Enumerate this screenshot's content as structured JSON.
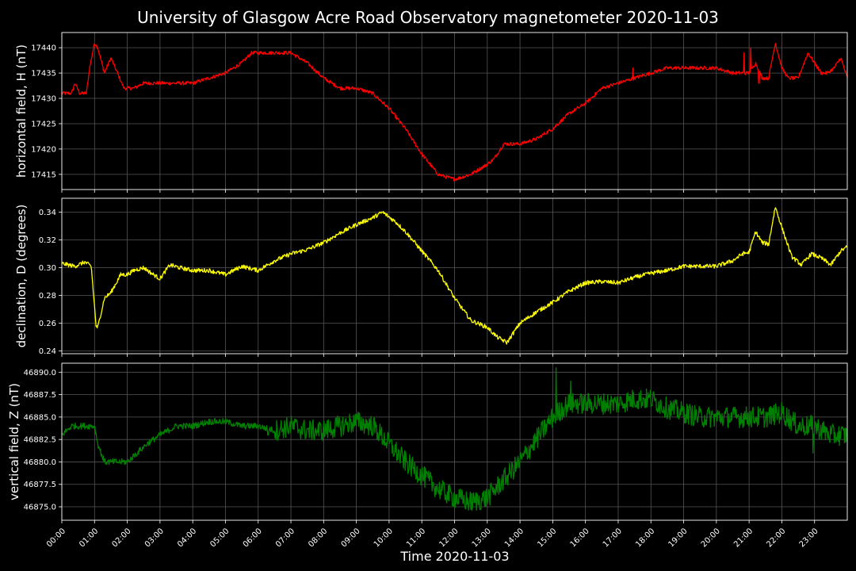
{
  "chart_data": {
    "type": "line",
    "title": "University of Glasgow Acre Road Observatory magnetometer 2020-11-03",
    "xlabel": "Time 2020-11-03",
    "x_ticks": [
      "00:00",
      "01:00",
      "02:00",
      "03:00",
      "04:00",
      "05:00",
      "06:00",
      "07:00",
      "08:00",
      "09:00",
      "10:00",
      "11:00",
      "12:00",
      "13:00",
      "14:00",
      "15:00",
      "16:00",
      "17:00",
      "18:00",
      "19:00",
      "20:00",
      "21:00",
      "22:00",
      "23:00"
    ],
    "x_range_hours": [
      0,
      24
    ],
    "grid": true,
    "background": "#000000",
    "grid_color": "#555555",
    "panels": [
      {
        "ylabel": "horizontal field, H (nT)",
        "color": "#ff0000",
        "ylim": [
          17412,
          17443
        ],
        "yticks": [
          17415,
          17420,
          17425,
          17430,
          17435,
          17440
        ],
        "noise": 0.35,
        "x": [
          0,
          0.3,
          0.4,
          0.55,
          0.75,
          0.85,
          1.0,
          1.1,
          1.3,
          1.5,
          1.7,
          1.9,
          2.2,
          2.5,
          2.8,
          3.0,
          3.5,
          4.0,
          4.5,
          5.0,
          5.5,
          5.8,
          6.0,
          6.2,
          6.5,
          7.0,
          7.5,
          8.0,
          8.5,
          9.0,
          9.5,
          10.0,
          10.5,
          11.0,
          11.5,
          12.0,
          12.5,
          13.0,
          13.2,
          13.5,
          14.0,
          14.5,
          15.0,
          15.5,
          16.0,
          16.5,
          17.0,
          17.5,
          18.0,
          18.5,
          19.0,
          19.5,
          20.0,
          20.5,
          20.8,
          21.0,
          21.2,
          21.4,
          21.6,
          21.8,
          22.0,
          22.2,
          22.5,
          22.8,
          23.0,
          23.2,
          23.4,
          23.6,
          23.8,
          24.0
        ],
        "y": [
          17431,
          17431,
          17433,
          17431,
          17431,
          17436,
          17441,
          17440,
          17435,
          17438,
          17435,
          17432,
          17432,
          17433,
          17433,
          17433,
          17433,
          17433,
          17434,
          17435,
          17437,
          17439,
          17439,
          17439,
          17439,
          17439,
          17437,
          17434,
          17432,
          17432,
          17431,
          17428,
          17424,
          17419,
          17415,
          17414,
          17415,
          17417,
          17418,
          17421,
          17421,
          17422,
          17424,
          17427,
          17429,
          17432,
          17433,
          17434,
          17435,
          17436,
          17436,
          17436,
          17436,
          17435,
          17435,
          17435,
          17437,
          17434,
          17434,
          17441,
          17436,
          17434,
          17434,
          17439,
          17437,
          17435,
          17435,
          17436,
          17438,
          17434
        ],
        "spikes": [
          [
            17.45,
            17436
          ],
          [
            20.85,
            17439
          ],
          [
            21.05,
            17440
          ],
          [
            21.3,
            17433
          ]
        ]
      },
      {
        "ylabel": "declination, D (degrees)",
        "color": "#ffff00",
        "ylim": [
          0.238,
          0.35
        ],
        "yticks": [
          0.24,
          0.26,
          0.28,
          0.3,
          0.32,
          0.34
        ],
        "noise": 0.0015,
        "x": [
          0,
          0.4,
          0.7,
          0.9,
          1.05,
          1.1,
          1.3,
          1.5,
          1.8,
          2.0,
          2.2,
          2.5,
          2.8,
          3.0,
          3.3,
          3.6,
          4.0,
          4.5,
          5.0,
          5.5,
          6.0,
          6.5,
          7.0,
          7.5,
          8.0,
          8.5,
          9.0,
          9.5,
          9.8,
          10.2,
          10.5,
          11.0,
          11.5,
          12.0,
          12.5,
          13.0,
          13.3,
          13.6,
          14.0,
          14.5,
          15.0,
          15.5,
          16.0,
          16.5,
          17.0,
          17.5,
          18.0,
          18.5,
          19.0,
          19.5,
          20.0,
          20.5,
          20.8,
          21.0,
          21.2,
          21.4,
          21.6,
          21.8,
          22.0,
          22.3,
          22.6,
          22.9,
          23.2,
          23.5,
          23.8,
          24.0
        ],
        "y": [
          0.303,
          0.301,
          0.304,
          0.301,
          0.257,
          0.257,
          0.278,
          0.282,
          0.295,
          0.295,
          0.298,
          0.3,
          0.295,
          0.292,
          0.302,
          0.3,
          0.298,
          0.298,
          0.295,
          0.301,
          0.298,
          0.305,
          0.31,
          0.313,
          0.318,
          0.325,
          0.331,
          0.336,
          0.34,
          0.333,
          0.326,
          0.312,
          0.298,
          0.278,
          0.262,
          0.257,
          0.25,
          0.246,
          0.26,
          0.268,
          0.275,
          0.283,
          0.289,
          0.29,
          0.289,
          0.293,
          0.296,
          0.298,
          0.301,
          0.301,
          0.301,
          0.305,
          0.31,
          0.311,
          0.326,
          0.318,
          0.317,
          0.344,
          0.329,
          0.308,
          0.302,
          0.31,
          0.307,
          0.302,
          0.312,
          0.315
        ],
        "spikes": []
      },
      {
        "ylabel": "vertical field, Z (nT)",
        "color": "#008000",
        "ylim": [
          46873.5,
          46891
        ],
        "yticks": [
          46875.0,
          46877.5,
          46880.0,
          46882.5,
          46885.0,
          46887.5,
          46890.0
        ],
        "noise": 0.35,
        "noise_late": 1.2,
        "noise_late_from": 6.5,
        "x": [
          0,
          0.3,
          0.6,
          0.9,
          1.0,
          1.1,
          1.3,
          1.6,
          2.0,
          2.3,
          2.6,
          3.0,
          3.5,
          4.0,
          4.5,
          5.0,
          5.5,
          6.0,
          6.5,
          7.0,
          7.5,
          8.0,
          8.5,
          9.0,
          9.5,
          10.0,
          10.5,
          11.0,
          11.5,
          12.0,
          12.5,
          13.0,
          13.5,
          14.0,
          14.5,
          15.0,
          15.5,
          16.0,
          16.5,
          17.0,
          17.5,
          18.0,
          18.5,
          19.0,
          19.5,
          20.0,
          20.5,
          21.0,
          21.5,
          22.0,
          22.5,
          23.0,
          23.5,
          24.0
        ],
        "y": [
          46883,
          46884,
          46884,
          46884,
          46884,
          46882,
          46880,
          46880,
          46880,
          46881,
          46882,
          46883,
          46884,
          46884,
          46884.5,
          46884.5,
          46884,
          46884,
          46883.5,
          46884,
          46883.5,
          46883.5,
          46884,
          46884.5,
          46884,
          46882,
          46880,
          46878.5,
          46877,
          46876,
          46875.5,
          46876,
          46878,
          46880,
          46882.5,
          46885,
          46886.5,
          46886.5,
          46886.5,
          46886.5,
          46887,
          46887,
          46886,
          46885.5,
          46885,
          46885,
          46885,
          46885,
          46885,
          46885.5,
          46884,
          46884,
          46883,
          46883
        ],
        "spikes": [
          [
            15.1,
            46890.5
          ],
          [
            15.55,
            46889
          ],
          [
            22.95,
            46881
          ],
          [
            6.3,
            46883
          ]
        ]
      }
    ]
  }
}
